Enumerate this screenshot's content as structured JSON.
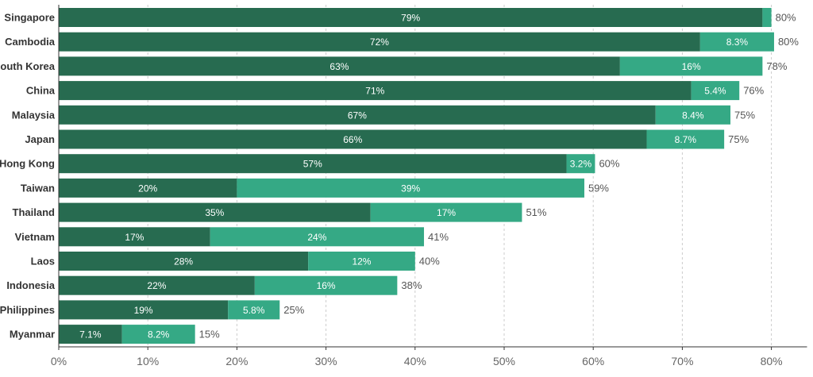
{
  "chart_data": {
    "type": "bar",
    "orientation": "horizontal",
    "stacked": true,
    "title": "",
    "xlabel": "",
    "ylabel": "",
    "xlim": [
      0,
      84
    ],
    "grid": true,
    "legend": "none",
    "categories": [
      "Singapore",
      "Cambodia",
      "South Korea",
      "China",
      "Malaysia",
      "Japan",
      "Hong Kong",
      "Taiwan",
      "Thailand",
      "Vietnam",
      "Laos",
      "Indonesia",
      "Philippines",
      "Myanmar"
    ],
    "series": [
      {
        "values": [
          79,
          72,
          63,
          71,
          67,
          66,
          57,
          20,
          35,
          17,
          28,
          22,
          19,
          7.1
        ],
        "labels": [
          "79%",
          "72%",
          "63%",
          "71%",
          "67%",
          "66%",
          "57%",
          "20%",
          "35%",
          "17%",
          "28%",
          "22%",
          "19%",
          "7.1%"
        ]
      },
      {
        "values": [
          1,
          8.3,
          16,
          5.4,
          8.4,
          8.7,
          3.2,
          39,
          17,
          24,
          12,
          16,
          5.8,
          8.2
        ],
        "labels": [
          "",
          "8.3%",
          "16%",
          "5.4%",
          "8.4%",
          "8.7%",
          "3.2%",
          "39%",
          "17%",
          "24%",
          "12%",
          "16%",
          "5.8%",
          "8.2%"
        ]
      }
    ],
    "totals": [
      "80%",
      "80%",
      "78%",
      "76%",
      "75%",
      "75%",
      "60%",
      "59%",
      "51%",
      "41%",
      "40%",
      "38%",
      "25%",
      "15%"
    ],
    "x_ticks": [
      0,
      10,
      20,
      30,
      40,
      50,
      60,
      70,
      80
    ],
    "x_tick_labels": [
      "0%",
      "10%",
      "20%",
      "30%",
      "40%",
      "50%",
      "60%",
      "70%",
      "80%"
    ],
    "colors": {
      "series0": "#276B50",
      "series1": "#35A985"
    }
  }
}
